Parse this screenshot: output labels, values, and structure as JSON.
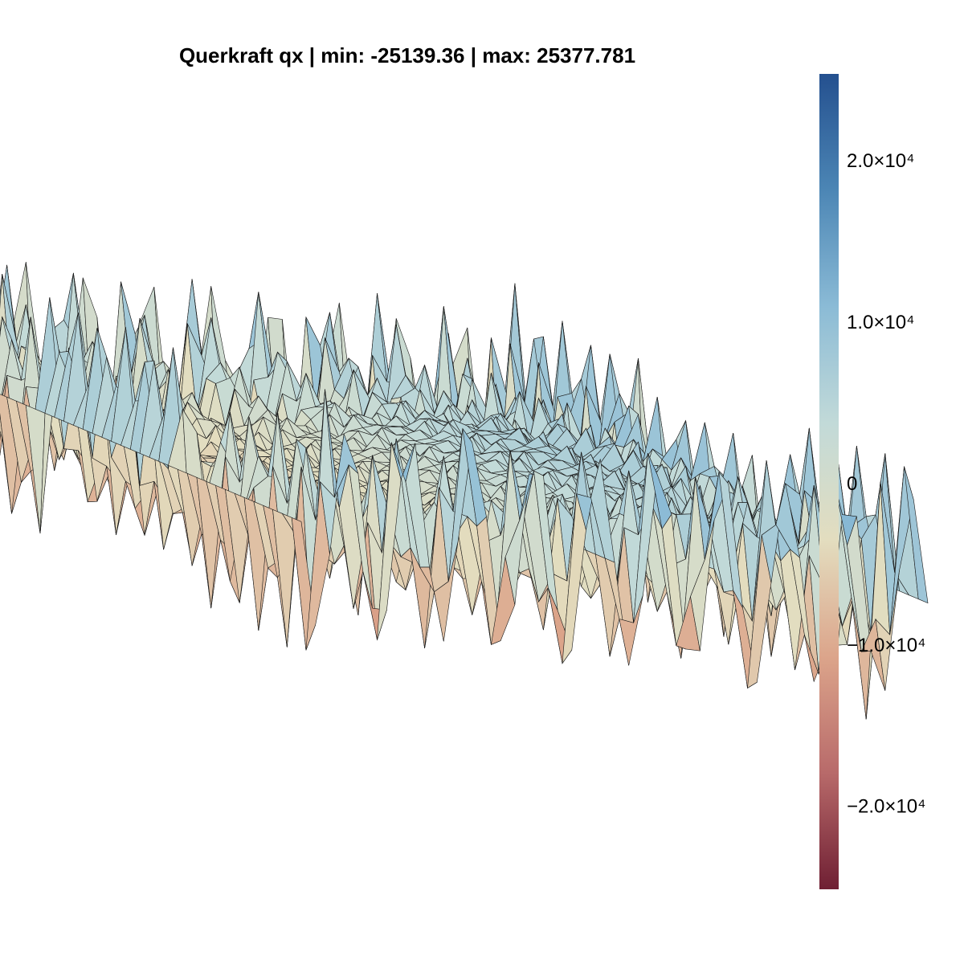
{
  "chart_data": {
    "type": "surface",
    "title": "Querkraft qx | min: -25139.36 | max: 25377.781",
    "min": -25139.36,
    "max": 25377.781,
    "colorbar": {
      "position": "right",
      "range": [
        -25139.36,
        25377.781
      ],
      "ticks": [
        {
          "value": 20000,
          "label": "2.0×10⁴"
        },
        {
          "value": 10000,
          "label": "1.0×10⁴"
        },
        {
          "value": 0,
          "label": "0"
        },
        {
          "value": -10000,
          "label": "−1.0×10⁴"
        },
        {
          "value": -20000,
          "label": "−2.0×10⁴"
        }
      ],
      "colormap": [
        "#6f1f33",
        "#b86a6a",
        "#dca58b",
        "#e3ddbf",
        "#c2dad8",
        "#8bbbd6",
        "#4c86b5",
        "#24508f"
      ]
    },
    "axes_visible": false,
    "grid": false
  }
}
